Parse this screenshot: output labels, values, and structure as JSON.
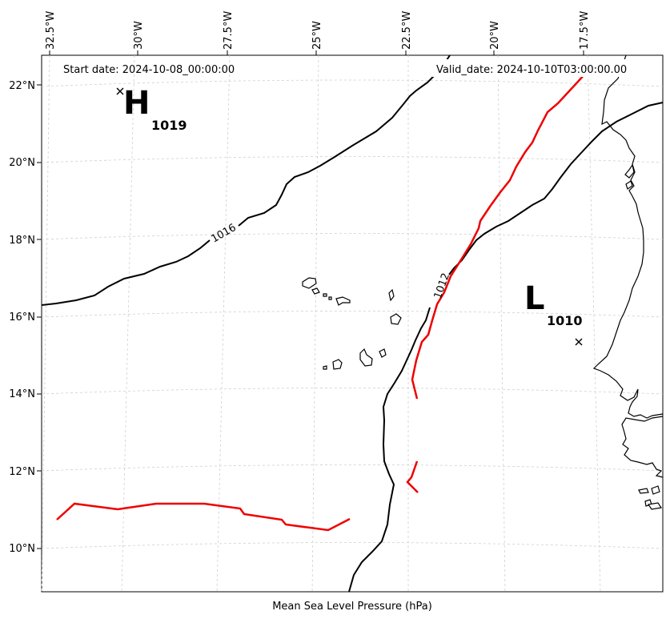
{
  "map": {
    "start_date_text": "Start date: 2024-10-08_00:00:00",
    "valid_date_text": "Valid_date: 2024-10-10T03:00:00.00",
    "xlabel": "Mean Sea Level Pressure (hPa)",
    "lon_labels": [
      "32.5°W",
      "30°W",
      "27.5°W",
      "25°W",
      "22.5°W",
      "20°W",
      "17.5°W"
    ],
    "lat_labels": [
      "22°N",
      "20°N",
      "18°N",
      "16°N",
      "14°N",
      "12°N",
      "10°N"
    ],
    "pressure_centers": [
      {
        "type": "H",
        "value": "1019"
      },
      {
        "type": "L",
        "value": "1010"
      }
    ],
    "isobar_labels": [
      "1016",
      "1012"
    ],
    "colors": {
      "isobar": "#000000",
      "front": "#ee0000",
      "grid": "#cfcfcf"
    }
  }
}
